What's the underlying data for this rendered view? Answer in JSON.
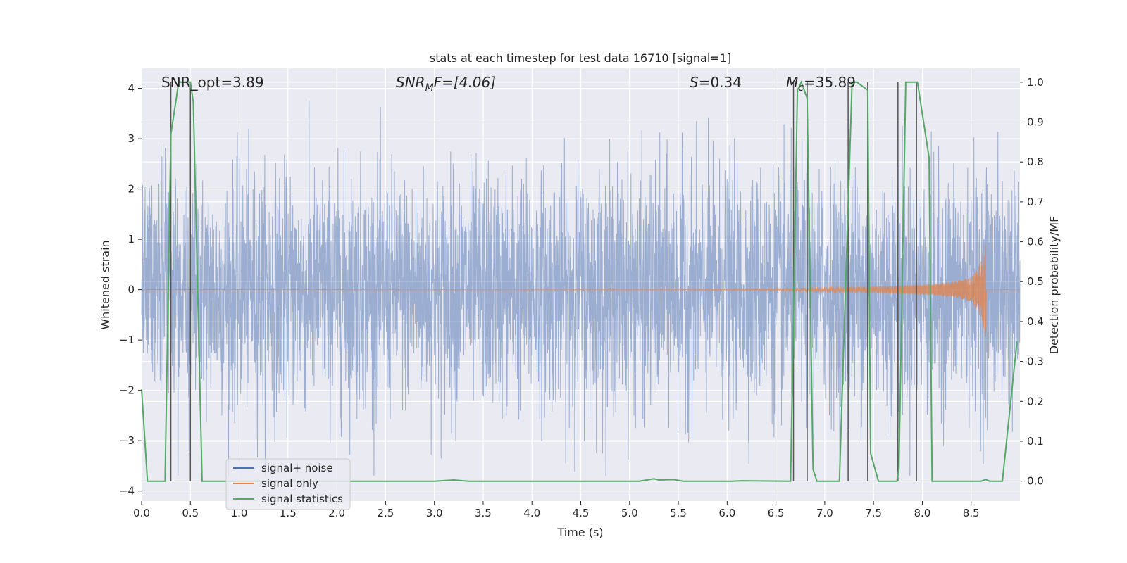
{
  "chart_data": {
    "type": "line",
    "title": "stats at each timestep for test data 16710 [signal=1]",
    "xlabel": "Time (s)",
    "ylabel": "Whitened strain",
    "ylabel_right": "Detection probability/MF",
    "xlim": [
      0.0,
      9.0
    ],
    "ylim": [
      -4.2,
      4.4
    ],
    "ylim_right": [
      -0.05,
      1.035
    ],
    "xticks": [
      "0.0",
      "0.5",
      "1.0",
      "1.5",
      "2.0",
      "2.5",
      "3.0",
      "3.5",
      "4.0",
      "4.5",
      "5.0",
      "5.5",
      "6.0",
      "6.5",
      "7.0",
      "7.5",
      "8.0",
      "8.5"
    ],
    "yticks": [
      "−4",
      "−3",
      "−2",
      "−1",
      "0",
      "1",
      "2",
      "3",
      "4"
    ],
    "yticks_right": [
      "0.0",
      "0.1",
      "0.2",
      "0.3",
      "0.4",
      "0.5",
      "0.6",
      "0.7",
      "0.8",
      "0.9",
      "1.0"
    ],
    "grid": true,
    "legend_position": "lower-left",
    "annotations": {
      "snr_opt": "SNR_opt=3.89",
      "snr_mf_base": "SNR",
      "snr_mf_sub": "M",
      "snr_mf_rest": "F=[4.06]",
      "s_sym": "S",
      "s_val": "=0.34",
      "mc_sym": "M",
      "mc_sub": "c",
      "mc_val": "=35.89"
    },
    "series": [
      {
        "name": "signal+ noise",
        "color": "#4c72b0",
        "description": "whitened noisy strain, roughly gaussian with std ~1.2, peaks reaching about +3.8 and -3.6"
      },
      {
        "name": "signal only",
        "color": "#dd8452",
        "chirp": {
          "t_merge": 8.65,
          "peak_amp": 0.95,
          "x": [
            0.0,
            5.5,
            6.5,
            7.0,
            7.5,
            8.0,
            8.3,
            8.5,
            8.6,
            8.65
          ],
          "amplitude": [
            0.0,
            0.01,
            0.02,
            0.04,
            0.06,
            0.1,
            0.15,
            0.25,
            0.55,
            0.95
          ]
        }
      },
      {
        "name": "signal statistics",
        "color": "#55a868",
        "x": [
          0.0,
          0.06,
          0.24,
          0.3,
          0.38,
          0.5,
          0.53,
          0.62,
          3.0,
          3.2,
          3.35,
          5.1,
          5.25,
          5.3,
          5.45,
          5.55,
          6.05,
          6.15,
          6.65,
          6.72,
          6.76,
          6.82,
          6.88,
          6.92,
          7.15,
          7.28,
          7.33,
          7.44,
          7.47,
          7.55,
          7.74,
          7.76,
          7.83,
          7.9,
          7.95,
          8.07,
          8.1,
          8.15,
          8.6,
          8.65,
          8.69,
          8.82,
          8.97
        ],
        "y": [
          0.23,
          0.0,
          0.0,
          0.87,
          1.0,
          1.0,
          0.95,
          0.0,
          0.0,
          0.003,
          0.0,
          0.0,
          0.006,
          0.003,
          0.004,
          0.0,
          0.0,
          0.001,
          0.0,
          0.98,
          1.0,
          0.96,
          0.03,
          0.0,
          0.0,
          1.0,
          1.0,
          0.98,
          0.07,
          0.0,
          0.0,
          0.03,
          1.0,
          1.0,
          1.0,
          0.81,
          0.0,
          0.0,
          0.0,
          0.004,
          0.0,
          0.0,
          0.35
        ]
      }
    ],
    "vertical_markers": [
      0.3,
      0.5,
      6.68,
      6.82,
      7.24,
      7.44,
      7.75,
      7.94
    ]
  }
}
